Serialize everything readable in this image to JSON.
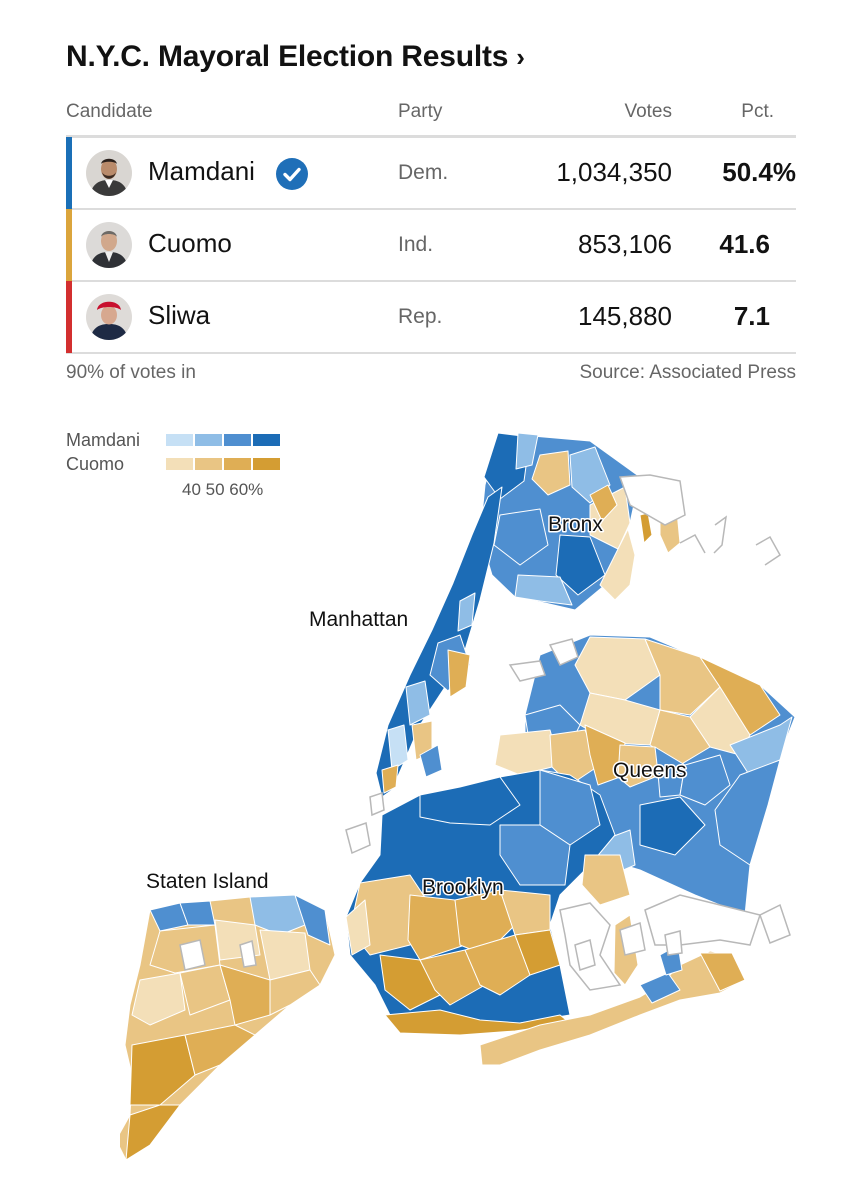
{
  "title": "N.Y.C. Mayoral Election Results",
  "title_chevron": "›",
  "table": {
    "headers": {
      "candidate": "Candidate",
      "party": "Party",
      "votes": "Votes",
      "pct": "Pct."
    },
    "rows": [
      {
        "name": "Mamdani",
        "party": "Dem.",
        "votes": "1,034,350",
        "pct": "50.4%",
        "color": "#1a6fb7",
        "winner": true
      },
      {
        "name": "Cuomo",
        "party": "Ind.",
        "votes": "853,106",
        "pct": "41.6",
        "color": "#dba53c",
        "winner": false
      },
      {
        "name": "Sliwa",
        "party": "Rep.",
        "votes": "145,880",
        "pct": "7.1",
        "color": "#d32f2f",
        "winner": false
      }
    ]
  },
  "reporting": "90% of votes in",
  "source": "Source: Associated Press",
  "legend": {
    "mamdani_label": "Mamdani",
    "cuomo_label": "Cuomo",
    "ticks": "40 50 60%",
    "mamdani_colors": [
      "#c6e0f5",
      "#8fbde6",
      "#4f8fd0",
      "#1c6cb6"
    ],
    "cuomo_colors": [
      "#f3dfb8",
      "#e9c584",
      "#dfae55",
      "#d49d33"
    ]
  },
  "map": {
    "boroughs": [
      "Bronx",
      "Manhattan",
      "Queens",
      "Brooklyn",
      "Staten Island"
    ]
  }
}
